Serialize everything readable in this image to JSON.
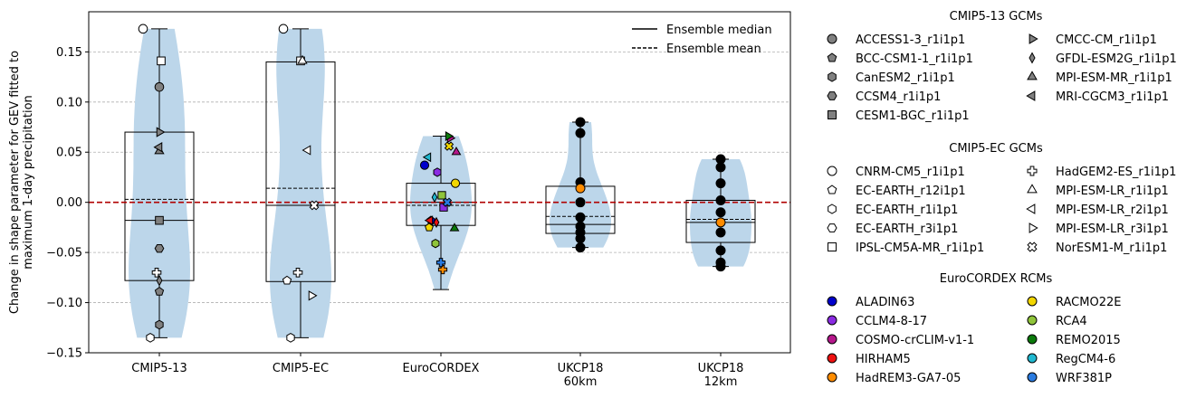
{
  "chart_data": {
    "type": "violin",
    "ylabel": "Change in shape parameter for GEV fitted to\nmaximum 1-day precipitation",
    "ylim": [
      -0.15,
      0.19
    ],
    "yticks": [
      -0.15,
      -0.1,
      -0.05,
      0.0,
      0.05,
      0.1,
      0.15
    ],
    "ytick_labels": [
      "−0.15",
      "−0.10",
      "−0.05",
      "0.00",
      "0.05",
      "0.10",
      "0.15"
    ],
    "grid": true,
    "zero_line_color": "#b00000",
    "violin_color": "#bcd6ea",
    "categories": [
      "CMIP5-13",
      "CMIP5-EC",
      "EuroCORDEX",
      "UKCP18\n60km",
      "UKCP18\n12km"
    ],
    "groups": [
      {
        "name": "CMIP5-13",
        "min": -0.135,
        "q1": -0.078,
        "median": -0.018,
        "mean": 0.003,
        "q3": 0.07,
        "max": 0.173,
        "points": [
          {
            "label": "ACCESS1-3_r1i1p1",
            "value": 0.115
          },
          {
            "label": "BCC-CSM1-1_r1i1p1",
            "value": -0.089
          },
          {
            "label": "CanESM2_r1i1p1",
            "value": -0.122
          },
          {
            "label": "CCSM4_r1i1p1",
            "value": -0.046
          },
          {
            "label": "CESM1-BGC_r1i1p1",
            "value": -0.018
          },
          {
            "label": "CMCC-CM_r1i1p1",
            "value": 0.07
          },
          {
            "label": "GFDL-ESM2G_r1i1p1",
            "value": -0.078
          },
          {
            "label": "MPI-ESM-MR_r1i1p1",
            "value": 0.051
          },
          {
            "label": "MRI-CGCM3_r1i1p1",
            "value": 0.055
          },
          {
            "label": "CNRM-CM5_r1i1p1",
            "value": 0.173
          },
          {
            "label": "EC-EARTH_r1i1p1",
            "value": -0.135
          },
          {
            "label": "HadGEM2-ES_r1i1p1",
            "value": -0.07
          },
          {
            "label": "IPSL-CM5A-MR_r1i1p1",
            "value": 0.141
          }
        ]
      },
      {
        "name": "CMIP5-EC",
        "min": -0.135,
        "q1": -0.079,
        "median": -0.003,
        "mean": 0.014,
        "q3": 0.14,
        "max": 0.173,
        "points": [
          {
            "label": "CNRM-CM5_r1i1p1",
            "value": 0.173
          },
          {
            "label": "EC-EARTH_r12i1p1",
            "value": -0.078
          },
          {
            "label": "EC-EARTH_r1i1p1",
            "value": -0.135
          },
          {
            "label": "HadGEM2-ES_r1i1p1",
            "value": -0.07
          },
          {
            "label": "IPSL-CM5A-MR_r1i1p1",
            "value": 0.141
          },
          {
            "label": "MPI-ESM-LR_r1i1p1",
            "value": 0.141
          },
          {
            "label": "MPI-ESM-LR_r2i1p1",
            "value": 0.052
          },
          {
            "label": "MPI-ESM-LR_r3i1p1",
            "value": -0.093
          },
          {
            "label": "NorESM1-M_r1i1p1",
            "value": -0.003
          }
        ]
      },
      {
        "name": "EuroCORDEX",
        "min": -0.087,
        "q1": -0.023,
        "median": 0.0,
        "mean": -0.003,
        "q3": 0.019,
        "max": 0.066,
        "points": [
          {
            "label": "ALADIN63",
            "value": 0.037
          },
          {
            "label": "ALADIN63",
            "value": -0.018
          },
          {
            "label": "CCLM4-8-17",
            "value": 0.03
          },
          {
            "label": "CCLM4-8-17",
            "value": -0.005
          },
          {
            "label": "COSMO-crCLIM-v1-1",
            "value": 0.064
          },
          {
            "label": "COSMO-crCLIM-v1-1",
            "value": 0.05
          },
          {
            "label": "HIRHAM5",
            "value": -0.018
          },
          {
            "label": "HIRHAM5",
            "value": -0.02
          },
          {
            "label": "HadREM3-GA7-05",
            "value": -0.067
          },
          {
            "label": "RACMO22E",
            "value": 0.056
          },
          {
            "label": "RACMO22E",
            "value": 0.019
          },
          {
            "label": "RACMO22E",
            "value": -0.025
          },
          {
            "label": "RCA4",
            "value": -0.041
          },
          {
            "label": "RCA4",
            "value": 0.007
          },
          {
            "label": "REMO2015",
            "value": 0.066
          },
          {
            "label": "REMO2015",
            "value": -0.026
          },
          {
            "label": "RegCM4-6",
            "value": 0.045
          },
          {
            "label": "RegCM4-6",
            "value": 0.005
          },
          {
            "label": "WRF381P",
            "value": -0.06
          },
          {
            "label": "WRF381P",
            "value": 0.0
          }
        ]
      },
      {
        "name": "UKCP18 60km",
        "min": -0.045,
        "q1": -0.031,
        "median": -0.022,
        "mean": -0.014,
        "q3": 0.016,
        "max": 0.08,
        "points": [
          {
            "label": "",
            "value": 0.08
          },
          {
            "label": "",
            "value": 0.069
          },
          {
            "label": "",
            "value": 0.02
          },
          {
            "label": "HadREM3-GA7-05",
            "value": 0.014
          },
          {
            "label": "",
            "value": 0.0
          },
          {
            "label": "",
            "value": -0.015
          },
          {
            "label": "",
            "value": -0.024
          },
          {
            "label": "",
            "value": -0.03
          },
          {
            "label": "",
            "value": -0.036
          },
          {
            "label": "",
            "value": -0.045
          }
        ]
      },
      {
        "name": "UKCP18 12km",
        "min": -0.064,
        "q1": -0.04,
        "median": -0.02,
        "mean": -0.017,
        "q3": 0.002,
        "max": 0.043,
        "points": [
          {
            "label": "",
            "value": 0.043
          },
          {
            "label": "",
            "value": 0.035
          },
          {
            "label": "",
            "value": 0.019
          },
          {
            "label": "",
            "value": 0.002
          },
          {
            "label": "",
            "value": -0.01
          },
          {
            "label": "HadREM3-GA7-05",
            "value": -0.02
          },
          {
            "label": "",
            "value": -0.03
          },
          {
            "label": "",
            "value": -0.048
          },
          {
            "label": "",
            "value": -0.06
          },
          {
            "label": "",
            "value": -0.064
          }
        ]
      }
    ],
    "legend_lines": [
      {
        "label": "Ensemble median",
        "style": "solid"
      },
      {
        "label": "Ensemble mean",
        "style": "dashed"
      }
    ],
    "legend_groups": [
      {
        "title": "CMIP5-13 GCMs",
        "entries": [
          {
            "label": "ACCESS1-3_r1i1p1",
            "marker": "circle",
            "fill": "#808080"
          },
          {
            "label": "BCC-CSM1-1_r1i1p1",
            "marker": "pentagon",
            "fill": "#808080"
          },
          {
            "label": "CanESM2_r1i1p1",
            "marker": "hexagon",
            "fill": "#808080"
          },
          {
            "label": "CCSM4_r1i1p1",
            "marker": "hexagon2",
            "fill": "#808080"
          },
          {
            "label": "CESM1-BGC_r1i1p1",
            "marker": "square",
            "fill": "#808080"
          },
          {
            "label": "CMCC-CM_r1i1p1",
            "marker": "tri-right",
            "fill": "#808080"
          },
          {
            "label": "GFDL-ESM2G_r1i1p1",
            "marker": "thin-diamond",
            "fill": "#808080"
          },
          {
            "label": "MPI-ESM-MR_r1i1p1",
            "marker": "tri-up",
            "fill": "#808080"
          },
          {
            "label": "MRI-CGCM3_r1i1p1",
            "marker": "tri-left",
            "fill": "#808080"
          }
        ]
      },
      {
        "title": "CMIP5-EC GCMs",
        "entries": [
          {
            "label": "CNRM-CM5_r1i1p1",
            "marker": "circle",
            "fill": "#ffffff"
          },
          {
            "label": "EC-EARTH_r12i1p1",
            "marker": "pentagon",
            "fill": "#ffffff"
          },
          {
            "label": "EC-EARTH_r1i1p1",
            "marker": "hexagon",
            "fill": "#ffffff"
          },
          {
            "label": "EC-EARTH_r3i1p1",
            "marker": "hexagon2",
            "fill": "#ffffff"
          },
          {
            "label": "IPSL-CM5A-MR_r1i1p1",
            "marker": "square",
            "fill": "#ffffff"
          },
          {
            "label": "HadGEM2-ES_r1i1p1",
            "marker": "plus",
            "fill": "#ffffff"
          },
          {
            "label": "MPI-ESM-LR_r1i1p1",
            "marker": "tri-up",
            "fill": "#ffffff"
          },
          {
            "label": "MPI-ESM-LR_r2i1p1",
            "marker": "tri-left",
            "fill": "#ffffff"
          },
          {
            "label": "MPI-ESM-LR_r3i1p1",
            "marker": "tri-right",
            "fill": "#ffffff"
          },
          {
            "label": "NorESM1-M_r1i1p1",
            "marker": "x",
            "fill": "#ffffff"
          }
        ]
      },
      {
        "title": "EuroCORDEX RCMs",
        "entries": [
          {
            "label": "ALADIN63",
            "marker": "circle",
            "fill": "#0000cc"
          },
          {
            "label": "CCLM4-8-17",
            "marker": "circle",
            "fill": "#8a2be2"
          },
          {
            "label": "COSMO-crCLIM-v1-1",
            "marker": "circle",
            "fill": "#b5178b"
          },
          {
            "label": "HIRHAM5",
            "marker": "circle",
            "fill": "#ee1111"
          },
          {
            "label": "HadREM3-GA7-05",
            "marker": "circle",
            "fill": "#ff8c00"
          },
          {
            "label": "RACMO22E",
            "marker": "circle",
            "fill": "#f2d600"
          },
          {
            "label": "RCA4",
            "marker": "circle",
            "fill": "#8fc43a"
          },
          {
            "label": "REMO2015",
            "marker": "circle",
            "fill": "#0b7a0b"
          },
          {
            "label": "RegCM4-6",
            "marker": "circle",
            "fill": "#20b8d0"
          },
          {
            "label": "WRF381P",
            "marker": "circle",
            "fill": "#2a7be0"
          }
        ]
      }
    ]
  }
}
